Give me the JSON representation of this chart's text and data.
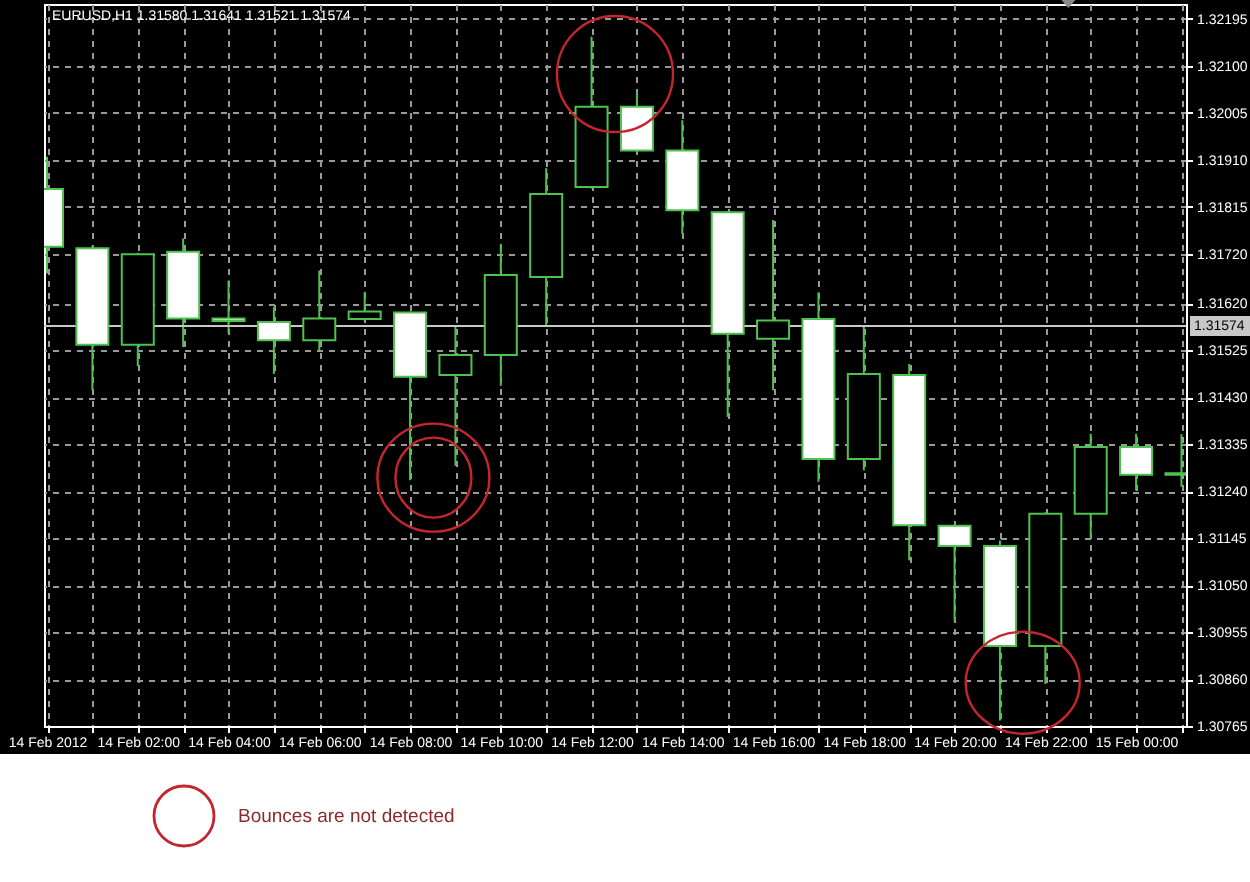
{
  "chart_data": {
    "type": "candlestick",
    "title": "EURUSD,H1 1.31580 1.31641 1.31521 1.31574",
    "x": [
      "2012-02-14T00:00",
      "2012-02-14T01:00",
      "2012-02-14T02:00",
      "2012-02-14T03:00",
      "2012-02-14T04:00",
      "2012-02-14T05:00",
      "2012-02-14T06:00",
      "2012-02-14T07:00",
      "2012-02-14T08:00",
      "2012-02-14T09:00",
      "2012-02-14T10:00",
      "2012-02-14T11:00",
      "2012-02-14T12:00",
      "2012-02-14T13:00",
      "2012-02-14T14:00",
      "2012-02-14T15:00",
      "2012-02-14T16:00",
      "2012-02-14T17:00",
      "2012-02-14T18:00",
      "2012-02-14T19:00",
      "2012-02-14T20:00",
      "2012-02-14T21:00",
      "2012-02-14T22:00",
      "2012-02-14T23:00",
      "2012-02-15T00:00",
      "2012-02-15T01:00"
    ],
    "ohlc": [
      [
        1.31851,
        1.31916,
        1.3168,
        1.31734
      ],
      [
        1.31731,
        1.31736,
        1.31444,
        1.31536
      ],
      [
        1.31536,
        1.31722,
        1.31493,
        1.31719
      ],
      [
        1.31724,
        1.31751,
        1.31531,
        1.31589
      ],
      [
        1.31589,
        1.31666,
        1.3156,
        1.31584
      ],
      [
        1.31582,
        1.31612,
        1.31477,
        1.31545
      ],
      [
        1.31545,
        1.31686,
        1.31525,
        1.31589
      ],
      [
        1.31588,
        1.31643,
        1.31584,
        1.31603
      ],
      [
        1.31601,
        1.31603,
        1.31262,
        1.31471
      ],
      [
        1.31475,
        1.31572,
        1.31291,
        1.31515
      ],
      [
        1.31515,
        1.3174,
        1.31453,
        1.31677
      ],
      [
        1.31673,
        1.31893,
        1.31572,
        1.31841
      ],
      [
        1.31855,
        1.32159,
        1.31852,
        1.32017
      ],
      [
        1.32017,
        1.32044,
        1.31926,
        1.31929
      ],
      [
        1.31929,
        1.3199,
        1.3176,
        1.31808
      ],
      [
        1.31804,
        1.31806,
        1.3139,
        1.31558
      ],
      [
        1.31548,
        1.31788,
        1.31444,
        1.31585
      ],
      [
        1.31588,
        1.31642,
        1.31259,
        1.31305
      ],
      [
        1.31305,
        1.31572,
        1.31282,
        1.31477
      ],
      [
        1.31475,
        1.31497,
        1.311,
        1.31171
      ],
      [
        1.3117,
        1.31172,
        1.30978,
        1.31129
      ],
      [
        1.31129,
        1.3114,
        1.30776,
        1.30927
      ],
      [
        1.30927,
        1.31197,
        1.3085,
        1.31194
      ],
      [
        1.31194,
        1.31356,
        1.31143,
        1.31329
      ],
      [
        1.31329,
        1.31356,
        1.31241,
        1.31273
      ],
      [
        1.31273,
        1.31355,
        1.31249,
        1.31276
      ]
    ],
    "color": "#4ec24e",
    "colors": [
      "#ffffff",
      "#ffffff",
      "#000000",
      "#ffffff",
      "#ffffff",
      "#ffffff",
      "#000000",
      "#000000",
      "#ffffff",
      "#000000",
      "#000000",
      "#000000",
      "#000000",
      "#ffffff",
      "#ffffff",
      "#ffffff",
      "#000000",
      "#ffffff",
      "#000000",
      "#ffffff",
      "#ffffff",
      "#ffffff",
      "#000000",
      "#000000",
      "#ffffff",
      "#000000"
    ],
    "xlim": [
      "2012-02-13T23:56",
      "2012-02-15T01:06"
    ],
    "xticks": [
      {
        "value": "2012-02-14T00:00",
        "label": "14 Feb 2012"
      },
      {
        "value": "2012-02-14T01:00",
        "label": null
      },
      {
        "value": "2012-02-14T02:00",
        "label": "14 Feb 02:00"
      },
      {
        "value": "2012-02-14T03:00",
        "label": null
      },
      {
        "value": "2012-02-14T04:00",
        "label": "14 Feb 04:00"
      },
      {
        "value": "2012-02-14T05:00",
        "label": null
      },
      {
        "value": "2012-02-14T06:00",
        "label": "14 Feb 06:00"
      },
      {
        "value": "2012-02-14T07:00",
        "label": null
      },
      {
        "value": "2012-02-14T08:00",
        "label": "14 Feb 08:00"
      },
      {
        "value": "2012-02-14T09:00",
        "label": null
      },
      {
        "value": "2012-02-14T10:00",
        "label": "14 Feb 10:00"
      },
      {
        "value": "2012-02-14T11:00",
        "label": null
      },
      {
        "value": "2012-02-14T12:00",
        "label": "14 Feb 12:00"
      },
      {
        "value": "2012-02-14T13:00",
        "label": null
      },
      {
        "value": "2012-02-14T14:00",
        "label": "14 Feb 14:00"
      },
      {
        "value": "2012-02-14T15:00",
        "label": null
      },
      {
        "value": "2012-02-14T16:00",
        "label": "14 Feb 16:00"
      },
      {
        "value": "2012-02-14T17:00",
        "label": null
      },
      {
        "value": "2012-02-14T18:00",
        "label": "14 Feb 18:00"
      },
      {
        "value": "2012-02-14T19:00",
        "label": null
      },
      {
        "value": "2012-02-14T20:00",
        "label": "14 Feb 20:00"
      },
      {
        "value": "2012-02-14T21:00",
        "label": null
      },
      {
        "value": "2012-02-14T22:00",
        "label": "14 Feb 22:00"
      },
      {
        "value": "2012-02-14T23:00",
        "label": null
      },
      {
        "value": "2012-02-15T00:00",
        "label": "15 Feb 00:00"
      },
      {
        "value": "2012-02-15T01:00",
        "label": null
      }
    ],
    "ylim": [
      1.30765,
      1.32225
    ],
    "yticks": [
      1.32195,
      {
        "value": 1.321,
        "label": "1.32100"
      },
      1.32005,
      {
        "value": 1.3191,
        "label": "1.31910"
      },
      1.31815,
      {
        "value": 1.3172,
        "label": "1.31720"
      },
      {
        "value": 1.3162,
        "label": "1.31620"
      },
      1.31525,
      {
        "value": 1.3143,
        "label": "1.31430"
      },
      1.31335,
      {
        "value": 1.3124,
        "label": "1.31240"
      },
      1.31145,
      {
        "value": 1.3105,
        "label": "1.31050"
      },
      1.30955,
      {
        "value": 1.3086,
        "label": "1.30860"
      },
      1.30765
    ],
    "grid": true,
    "ref_lines": [
      {
        "axis": "y",
        "value": 1.31574,
        "label": "1.31574",
        "color": "#c8c8c8"
      }
    ],
    "annotations": [
      "Bounces are not detected"
    ]
  }
}
